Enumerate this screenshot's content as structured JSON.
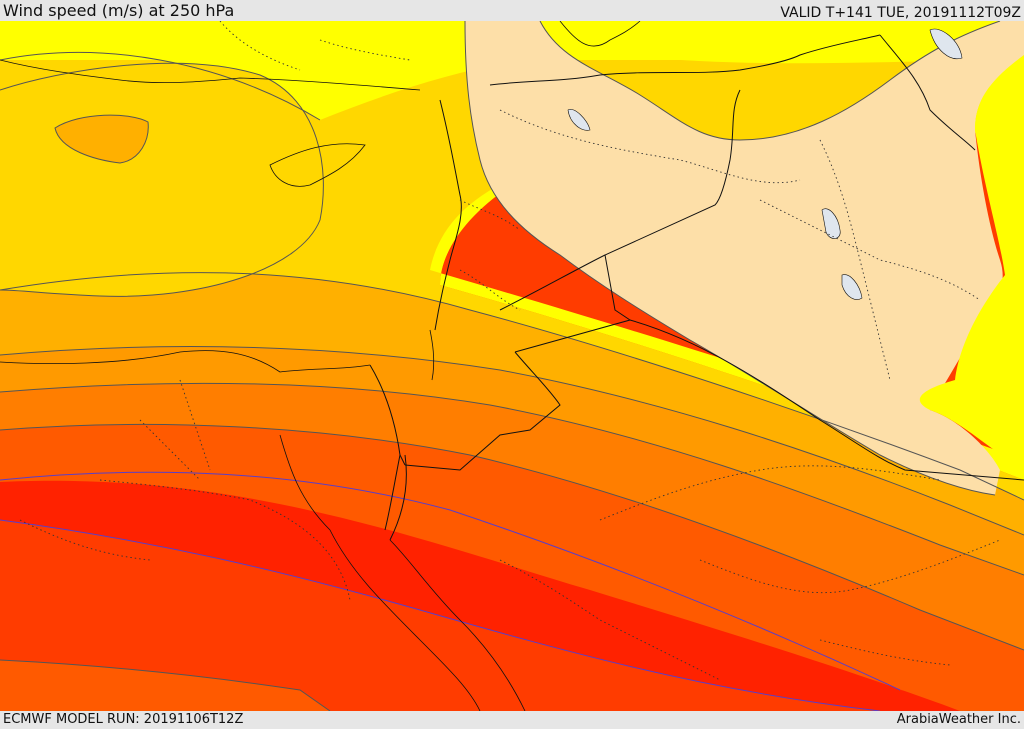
{
  "header": {
    "title": "Wind speed (m/s) at 250 hPa",
    "valid_time": "VALID T+141 TUE, 20191112T09Z"
  },
  "footer": {
    "model_run": "ECMWF MODEL RUN: 20191106T12Z",
    "credit": "ArabiaWeather Inc."
  },
  "map": {
    "field": "wind speed at 250 hPa",
    "colors": {
      "land_background": "#fddfa8",
      "band_1": "#ffff00",
      "band_2": "#ffd700",
      "band_3": "#ffb000",
      "band_4": "#ff9a00",
      "band_5": "#ff7e00",
      "band_6": "#ff5a00",
      "band_7": "#ff3c00",
      "band_8": "#ff2200",
      "isotach_line": "#555555",
      "jet_core_line": "#5a3ec8",
      "lakes": "#dfe6ee",
      "borders": "#111111"
    }
  }
}
